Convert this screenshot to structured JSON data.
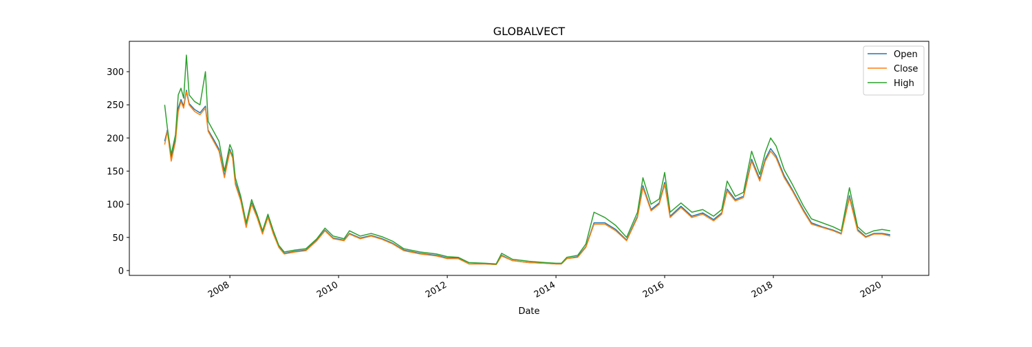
{
  "chart_data": {
    "type": "line",
    "title": "GLOBALVECT",
    "xlabel": "Date",
    "x": [
      2006.8,
      2006.85,
      2006.92,
      2007.0,
      2007.05,
      2007.1,
      2007.15,
      2007.2,
      2007.25,
      2007.35,
      2007.45,
      2007.55,
      2007.6,
      2007.7,
      2007.8,
      2007.9,
      2008.0,
      2008.05,
      2008.1,
      2008.2,
      2008.3,
      2008.4,
      2008.5,
      2008.6,
      2008.7,
      2008.8,
      2008.9,
      2009.0,
      2009.2,
      2009.4,
      2009.6,
      2009.75,
      2009.9,
      2010.1,
      2010.2,
      2010.4,
      2010.6,
      2010.8,
      2011.0,
      2011.2,
      2011.5,
      2011.8,
      2012.0,
      2012.2,
      2012.4,
      2012.7,
      2012.9,
      2013.0,
      2013.2,
      2013.5,
      2013.8,
      2014.0,
      2014.1,
      2014.2,
      2014.4,
      2014.55,
      2014.7,
      2014.9,
      2015.1,
      2015.3,
      2015.5,
      2015.6,
      2015.75,
      2015.9,
      2016.0,
      2016.1,
      2016.3,
      2016.5,
      2016.7,
      2016.9,
      2017.05,
      2017.15,
      2017.3,
      2017.45,
      2017.6,
      2017.75,
      2017.85,
      2017.95,
      2018.05,
      2018.2,
      2018.35,
      2018.55,
      2018.7,
      2018.9,
      2019.1,
      2019.25,
      2019.4,
      2019.55,
      2019.7,
      2019.85,
      2020.0,
      2020.15
    ],
    "series": [
      {
        "name": "Open",
        "color": "#1f77b4",
        "values": [
          195,
          212,
          170,
          200,
          245,
          258,
          248,
          272,
          252,
          243,
          238,
          248,
          212,
          198,
          183,
          143,
          183,
          172,
          133,
          107,
          67,
          102,
          82,
          57,
          82,
          57,
          36,
          26,
          29,
          31,
          46,
          61,
          49,
          46,
          56,
          49,
          53,
          48,
          41,
          31,
          26,
          23,
          19,
          19,
          10,
          10,
          9,
          23,
          15,
          12,
          11,
          10,
          10,
          18,
          21,
          36,
          72,
          72,
          62,
          46,
          82,
          128,
          92,
          102,
          133,
          82,
          97,
          82,
          87,
          77,
          87,
          123,
          107,
          112,
          168,
          138,
          168,
          184,
          173,
          143,
          122,
          92,
          72,
          66,
          61,
          56,
          113,
          62,
          51,
          56,
          56,
          54
        ]
      },
      {
        "name": "Close",
        "color": "#ff7f0e",
        "values": [
          190,
          210,
          165,
          195,
          240,
          255,
          245,
          270,
          250,
          240,
          235,
          245,
          210,
          195,
          180,
          140,
          180,
          170,
          130,
          105,
          65,
          100,
          80,
          55,
          80,
          55,
          35,
          25,
          28,
          30,
          45,
          60,
          48,
          45,
          55,
          48,
          52,
          47,
          40,
          30,
          25,
          22,
          18,
          18,
          10,
          10,
          9,
          22,
          15,
          12,
          11,
          10,
          10,
          18,
          20,
          35,
          70,
          70,
          60,
          45,
          80,
          125,
          90,
          100,
          130,
          80,
          95,
          80,
          85,
          75,
          85,
          120,
          105,
          110,
          165,
          135,
          165,
          180,
          170,
          140,
          120,
          90,
          70,
          65,
          60,
          55,
          110,
          60,
          50,
          55,
          55,
          52
        ]
      },
      {
        "name": "High",
        "color": "#2ca02c",
        "values": [
          250,
          215,
          175,
          205,
          265,
          275,
          260,
          325,
          265,
          255,
          250,
          300,
          225,
          210,
          195,
          150,
          190,
          180,
          140,
          112,
          72,
          107,
          85,
          60,
          85,
          60,
          38,
          28,
          31,
          33,
          48,
          64,
          52,
          48,
          60,
          52,
          56,
          51,
          44,
          33,
          28,
          25,
          21,
          20,
          12,
          11,
          10,
          26,
          17,
          14,
          12,
          11,
          11,
          20,
          23,
          40,
          88,
          80,
          68,
          50,
          88,
          140,
          100,
          108,
          148,
          88,
          102,
          88,
          92,
          82,
          92,
          135,
          112,
          118,
          180,
          145,
          178,
          200,
          188,
          152,
          130,
          98,
          78,
          72,
          66,
          60,
          125,
          66,
          55,
          60,
          62,
          60
        ]
      }
    ],
    "xlim": [
      2006.15,
      2020.86
    ],
    "xticks": [
      2008,
      2010,
      2012,
      2014,
      2016,
      2018,
      2020
    ],
    "ylim": [
      -7.3,
      345.8
    ],
    "yticks": [
      0,
      50,
      100,
      150,
      200,
      250,
      300
    ],
    "legend": "upper right"
  }
}
